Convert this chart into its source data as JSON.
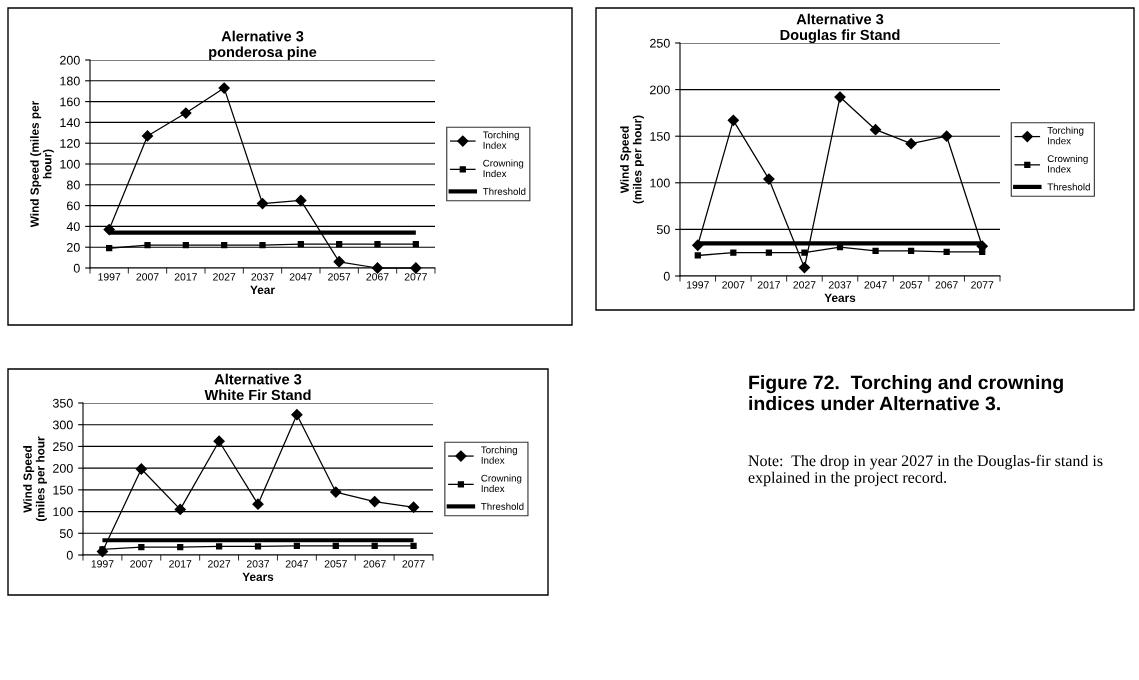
{
  "chart_data": [
    {
      "type": "line",
      "title": "Alernative 3\nponderosa pine",
      "xlabel": "Year",
      "ylabel": "Wind Speed (miles per\nhour)",
      "categories": [
        "1997",
        "2007",
        "2017",
        "2027",
        "2037",
        "2047",
        "2057",
        "2067",
        "2077"
      ],
      "ylim": [
        0,
        200
      ],
      "yticks": [
        0,
        20,
        40,
        60,
        80,
        100,
        120,
        140,
        160,
        180,
        200
      ],
      "grid": "y",
      "legend": "right",
      "series": [
        {
          "name": "Torching\nIndex",
          "color": "#000000",
          "marker": "diamond",
          "values": [
            37,
            127,
            149,
            173,
            62,
            65,
            6,
            0,
            0
          ]
        },
        {
          "name": "Crowning\nIndex",
          "color": "#000000",
          "marker": "square",
          "values": [
            19,
            22,
            22,
            22,
            22,
            23,
            23,
            23,
            23
          ]
        }
      ],
      "ref_lines": [
        {
          "axis": "y",
          "value": 34,
          "label": "Threshold",
          "color": "#000000"
        }
      ]
    },
    {
      "type": "line",
      "title": "Alternative 3\nDouglas fir Stand",
      "xlabel": "Years",
      "ylabel": "Wind Speed\n(miles per hour)",
      "categories": [
        "1997",
        "2007",
        "2017",
        "2027",
        "2037",
        "2047",
        "2057",
        "2067",
        "2077"
      ],
      "ylim": [
        0,
        250
      ],
      "yticks": [
        0,
        50,
        100,
        150,
        200,
        250
      ],
      "grid": "y",
      "legend": "right",
      "series": [
        {
          "name": "Torching\nIndex",
          "color": "#000000",
          "marker": "diamond",
          "values": [
            33,
            167,
            104,
            9,
            192,
            157,
            142,
            150,
            32
          ]
        },
        {
          "name": "Crowning\nIndex",
          "color": "#000000",
          "marker": "square",
          "values": [
            22,
            25,
            25,
            25,
            31,
            27,
            27,
            26,
            26
          ]
        }
      ],
      "ref_lines": [
        {
          "axis": "y",
          "value": 35,
          "label": "Threshold",
          "color": "#000000"
        }
      ]
    },
    {
      "type": "line",
      "title": "Alternative 3\nWhite Fir Stand",
      "xlabel": "Years",
      "ylabel": "Wind Speed\n(miles per hour",
      "categories": [
        "1997",
        "2007",
        "2017",
        "2027",
        "2037",
        "2047",
        "2057",
        "2067",
        "2077"
      ],
      "ylim": [
        0,
        350
      ],
      "yticks": [
        0,
        50,
        100,
        150,
        200,
        250,
        300,
        350
      ],
      "grid": "y",
      "legend": "right",
      "series": [
        {
          "name": "Torching\nIndex",
          "color": "#000000",
          "marker": "diamond",
          "values": [
            8,
            198,
            105,
            262,
            117,
            323,
            145,
            123,
            110
          ]
        },
        {
          "name": "Crowning\nIndex",
          "color": "#000000",
          "marker": "square",
          "values": [
            13,
            18,
            18,
            20,
            20,
            21,
            21,
            21,
            21
          ]
        }
      ],
      "ref_lines": [
        {
          "axis": "y",
          "value": 34,
          "label": "Threshold",
          "color": "#000000"
        }
      ]
    },
    {
      "type": "other",
      "title": "Figure 72.  Torching and crowning\nindices under Alternative 3.",
      "annotations": [
        "Note:  The drop in year 2027 in the Douglas-fir stand is\nexplained in the project record."
      ]
    }
  ]
}
